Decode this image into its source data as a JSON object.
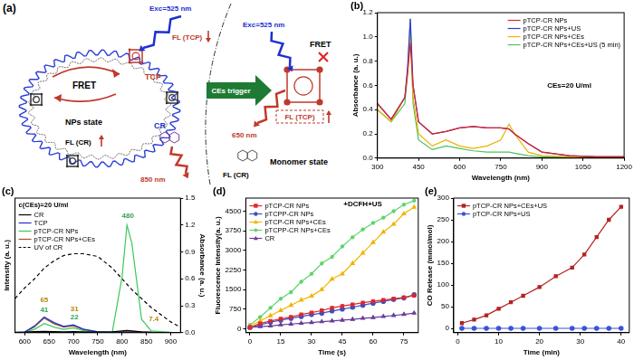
{
  "panel_a": {
    "label": "(a)",
    "left": {
      "excitation": "Exc=525 nm",
      "fl_tcp": "FL (TCP)",
      "tcp": "TCP",
      "fret": "FRET",
      "state": "NPs state",
      "fl_cr": "FL (CR)",
      "cr": "CR",
      "emission": "850 nm"
    },
    "trigger": "CEs trigger",
    "right": {
      "excitation": "Exc=525 nm",
      "fret": "FRET",
      "emission": "650 nm",
      "fl_tcp": "FL (TCP)",
      "fl_cr": "FL (CR)",
      "state": "Monomer state"
    }
  },
  "chart_data": [
    {
      "type": "line",
      "title": "(b)",
      "x_label": "Wavelength (nm)",
      "y_label": "Absorbance (a. u.)",
      "x": [
        300,
        350,
        400,
        410,
        420,
        430,
        450,
        500,
        550,
        600,
        650,
        700,
        750,
        780,
        800,
        850,
        900,
        1000,
        1100,
        1200
      ],
      "xlim": [
        300,
        1200
      ],
      "xticks": [
        300,
        450,
        600,
        750,
        900,
        1050,
        1200
      ],
      "ylim": [
        0,
        1.2
      ],
      "yticks": [
        {
          "value": 0,
          "label": "0.0"
        },
        0.2,
        0.4,
        0.6,
        0.8,
        {
          "value": 1,
          "label": "1.0"
        },
        1.2
      ],
      "grid": false,
      "legend": "upper right",
      "series": [
        {
          "name": "pTCP-CR NPs",
          "color": "#e0262a",
          "values": [
            0.45,
            0.32,
            0.5,
            0.7,
            0.95,
            0.6,
            0.3,
            0.2,
            0.22,
            0.25,
            0.26,
            0.25,
            0.25,
            0.24,
            0.2,
            0.12,
            0.05,
            0.02,
            0.01,
            0.01
          ]
        },
        {
          "name": "pTCP-CR NPs+US",
          "color": "#2f3fd0",
          "values": [
            0.45,
            0.32,
            0.5,
            0.75,
            1.15,
            0.6,
            0.3,
            0.2,
            0.22,
            0.25,
            0.26,
            0.25,
            0.25,
            0.24,
            0.2,
            0.12,
            0.05,
            0.02,
            0.01,
            0.01
          ]
        },
        {
          "name": "pTCP-CR NPs+CEs",
          "color": "#e8b400",
          "values": [
            0.4,
            0.3,
            0.5,
            0.7,
            1.0,
            0.5,
            0.2,
            0.1,
            0.15,
            0.1,
            0.08,
            0.1,
            0.15,
            0.28,
            0.2,
            0.05,
            0.02,
            0.01,
            0.01,
            0.01
          ]
        },
        {
          "name": "pTCP-CR NPs+CEs+US (5 min)",
          "color": "#4cc25a",
          "values": [
            0.4,
            0.3,
            0.45,
            0.7,
            1.15,
            0.45,
            0.15,
            0.07,
            0.1,
            0.08,
            0.06,
            0.05,
            0.05,
            0.05,
            0.04,
            0.02,
            0.01,
            0.01,
            0.01,
            0.01
          ]
        }
      ],
      "annotations": [
        {
          "text": "CEs=20 U/ml",
          "x": 1000,
          "y": 0.6
        }
      ]
    },
    {
      "type": "line",
      "title": "(c)",
      "subtitle": "c(CEs)=20 U/ml",
      "x_label": "Wavelength (nm)",
      "y_label": "Intensity (a. u.)",
      "y2_label": "Absorbance (a. u.)",
      "x": [
        580,
        600,
        620,
        640,
        660,
        680,
        700,
        720,
        750,
        780,
        800,
        810,
        820,
        840,
        860,
        900,
        920
      ],
      "xlim": [
        580,
        920
      ],
      "xticks": [
        600,
        650,
        700,
        750,
        800,
        850,
        900
      ],
      "ylim": [
        0,
        600
      ],
      "yticks": [],
      "y2lim": [
        0,
        1.5
      ],
      "y2ticks": [
        {
          "value": 0,
          "label": "0.0"
        },
        0.3,
        0.6,
        0.9,
        1.2,
        1.5
      ],
      "grid": false,
      "legend": "upper left",
      "series": [
        {
          "name": "CR",
          "color": "#000000",
          "values": [
            2,
            3,
            5,
            6,
            5,
            4,
            5,
            4,
            3,
            4,
            8,
            10,
            8,
            4,
            2,
            1,
            1
          ]
        },
        {
          "name": "TCP",
          "color": "#1f2fd0",
          "values": [
            1,
            3,
            30,
            70,
            45,
            28,
            35,
            16,
            4,
            2,
            2,
            2,
            2,
            1,
            1,
            1,
            1
          ]
        },
        {
          "name": "pTCP-CR NPs",
          "color": "#39c95a",
          "values": [
            1,
            2,
            15,
            41,
            25,
            15,
            22,
            10,
            3,
            5,
            250,
            480,
            400,
            60,
            8,
            2,
            1
          ]
        },
        {
          "name": "pTCP-CR NPs+CEs",
          "color": "#a0522d",
          "values": [
            1,
            3,
            25,
            65,
            40,
            25,
            31,
            15,
            4,
            4,
            5,
            7.4,
            6,
            4,
            3,
            1,
            1
          ]
        },
        {
          "name": "UV of CR",
          "color": "#000000",
          "line_style": "dashed",
          "axis": "y2",
          "values": [
            0.38,
            0.5,
            0.6,
            0.72,
            0.8,
            0.86,
            0.88,
            0.88,
            0.85,
            0.72,
            0.6,
            0.54,
            0.48,
            0.38,
            0.28,
            0.12,
            0.06
          ]
        }
      ],
      "annotations": [
        {
          "text": "65",
          "x": 640,
          "y": 145,
          "color": "#b8860b"
        },
        {
          "text": "41",
          "x": 640,
          "y": 100,
          "color": "#2e9e4f"
        },
        {
          "text": "31",
          "x": 702,
          "y": 105,
          "color": "#b8860b"
        },
        {
          "text": "22",
          "x": 702,
          "y": 68,
          "color": "#2e9e4f"
        },
        {
          "text": "480",
          "x": 812,
          "y": 520,
          "color": "#2e9e4f"
        },
        {
          "text": "7.4",
          "x": 865,
          "y": 60,
          "color": "#b8860b"
        }
      ]
    },
    {
      "type": "line",
      "title": "(d)",
      "x_label": "Time (s)",
      "y_label": "Fluorescence Intensity(a. u.)",
      "x": [
        0,
        5,
        10,
        15,
        20,
        25,
        30,
        35,
        40,
        45,
        50,
        55,
        60,
        65,
        70,
        75,
        80
      ],
      "xlim": [
        -2,
        82
      ],
      "xticks": [
        0,
        15,
        30,
        45,
        60,
        75
      ],
      "ylim": [
        -150,
        5000
      ],
      "yticks": [
        0,
        750,
        1500,
        2250,
        3000,
        3750,
        4500
      ],
      "grid": false,
      "legend": "upper left",
      "series": [
        {
          "name": "pTCP-CR NPs",
          "color": "#e0262a",
          "marker": "square",
          "values": [
            50,
            200,
            300,
            380,
            450,
            550,
            620,
            700,
            800,
            870,
            930,
            1000,
            1050,
            1100,
            1150,
            1200,
            1270
          ]
        },
        {
          "name": "pTCPP-CR NPs",
          "color": "#3b4fc4",
          "marker": "circle",
          "values": [
            50,
            150,
            250,
            330,
            400,
            470,
            540,
            600,
            680,
            750,
            820,
            900,
            980,
            1050,
            1120,
            1180,
            1300
          ]
        },
        {
          "name": "pTCP-CR NPs+CEs",
          "color": "#f0b400",
          "marker": "triangle",
          "values": [
            100,
            300,
            500,
            700,
            900,
            1100,
            1250,
            1500,
            1900,
            2100,
            2500,
            2900,
            3300,
            3700,
            4000,
            4400,
            4650
          ]
        },
        {
          "name": "pTCPP-CR NPs+CEs",
          "color": "#5ed36a",
          "marker": "star",
          "values": [
            150,
            450,
            800,
            1150,
            1400,
            1800,
            2100,
            2500,
            2750,
            3150,
            3500,
            3800,
            4050,
            4250,
            4500,
            4750,
            4900
          ]
        },
        {
          "name": "CR",
          "color": "#6a3d9a",
          "marker": "triangle",
          "values": [
            50,
            80,
            110,
            150,
            180,
            210,
            240,
            270,
            300,
            330,
            360,
            400,
            430,
            470,
            510,
            550,
            600
          ]
        }
      ],
      "annotations": [
        {
          "text": "+DCFH+US",
          "x": 55,
          "y": 4750
        }
      ]
    },
    {
      "type": "line",
      "title": "(e)",
      "x_label": "Time (min)",
      "y_label": "CO Release (mmol/mol)",
      "x": [
        1,
        4,
        7,
        10,
        13,
        16,
        20,
        24,
        28,
        31,
        34,
        37,
        40
      ],
      "xlim": [
        -1,
        42
      ],
      "xticks": [
        0,
        10,
        20,
        30,
        40
      ],
      "ylim": [
        -10,
        300
      ],
      "yticks": [
        0,
        50,
        100,
        150,
        200,
        250,
        300
      ],
      "grid": false,
      "legend": "upper left",
      "series": [
        {
          "name": "pTCP-CR NPs+CEs+US",
          "color": "#b22222",
          "marker": "square",
          "values": [
            12,
            20,
            30,
            45,
            60,
            75,
            95,
            120,
            140,
            170,
            210,
            250,
            280
          ]
        },
        {
          "name": "pTCP-CR NPs+US",
          "color": "#3a53d6",
          "marker": "circle",
          "values": [
            0,
            0,
            0,
            0,
            0,
            0,
            0,
            0,
            0,
            0,
            0,
            0,
            0
          ]
        }
      ]
    }
  ]
}
